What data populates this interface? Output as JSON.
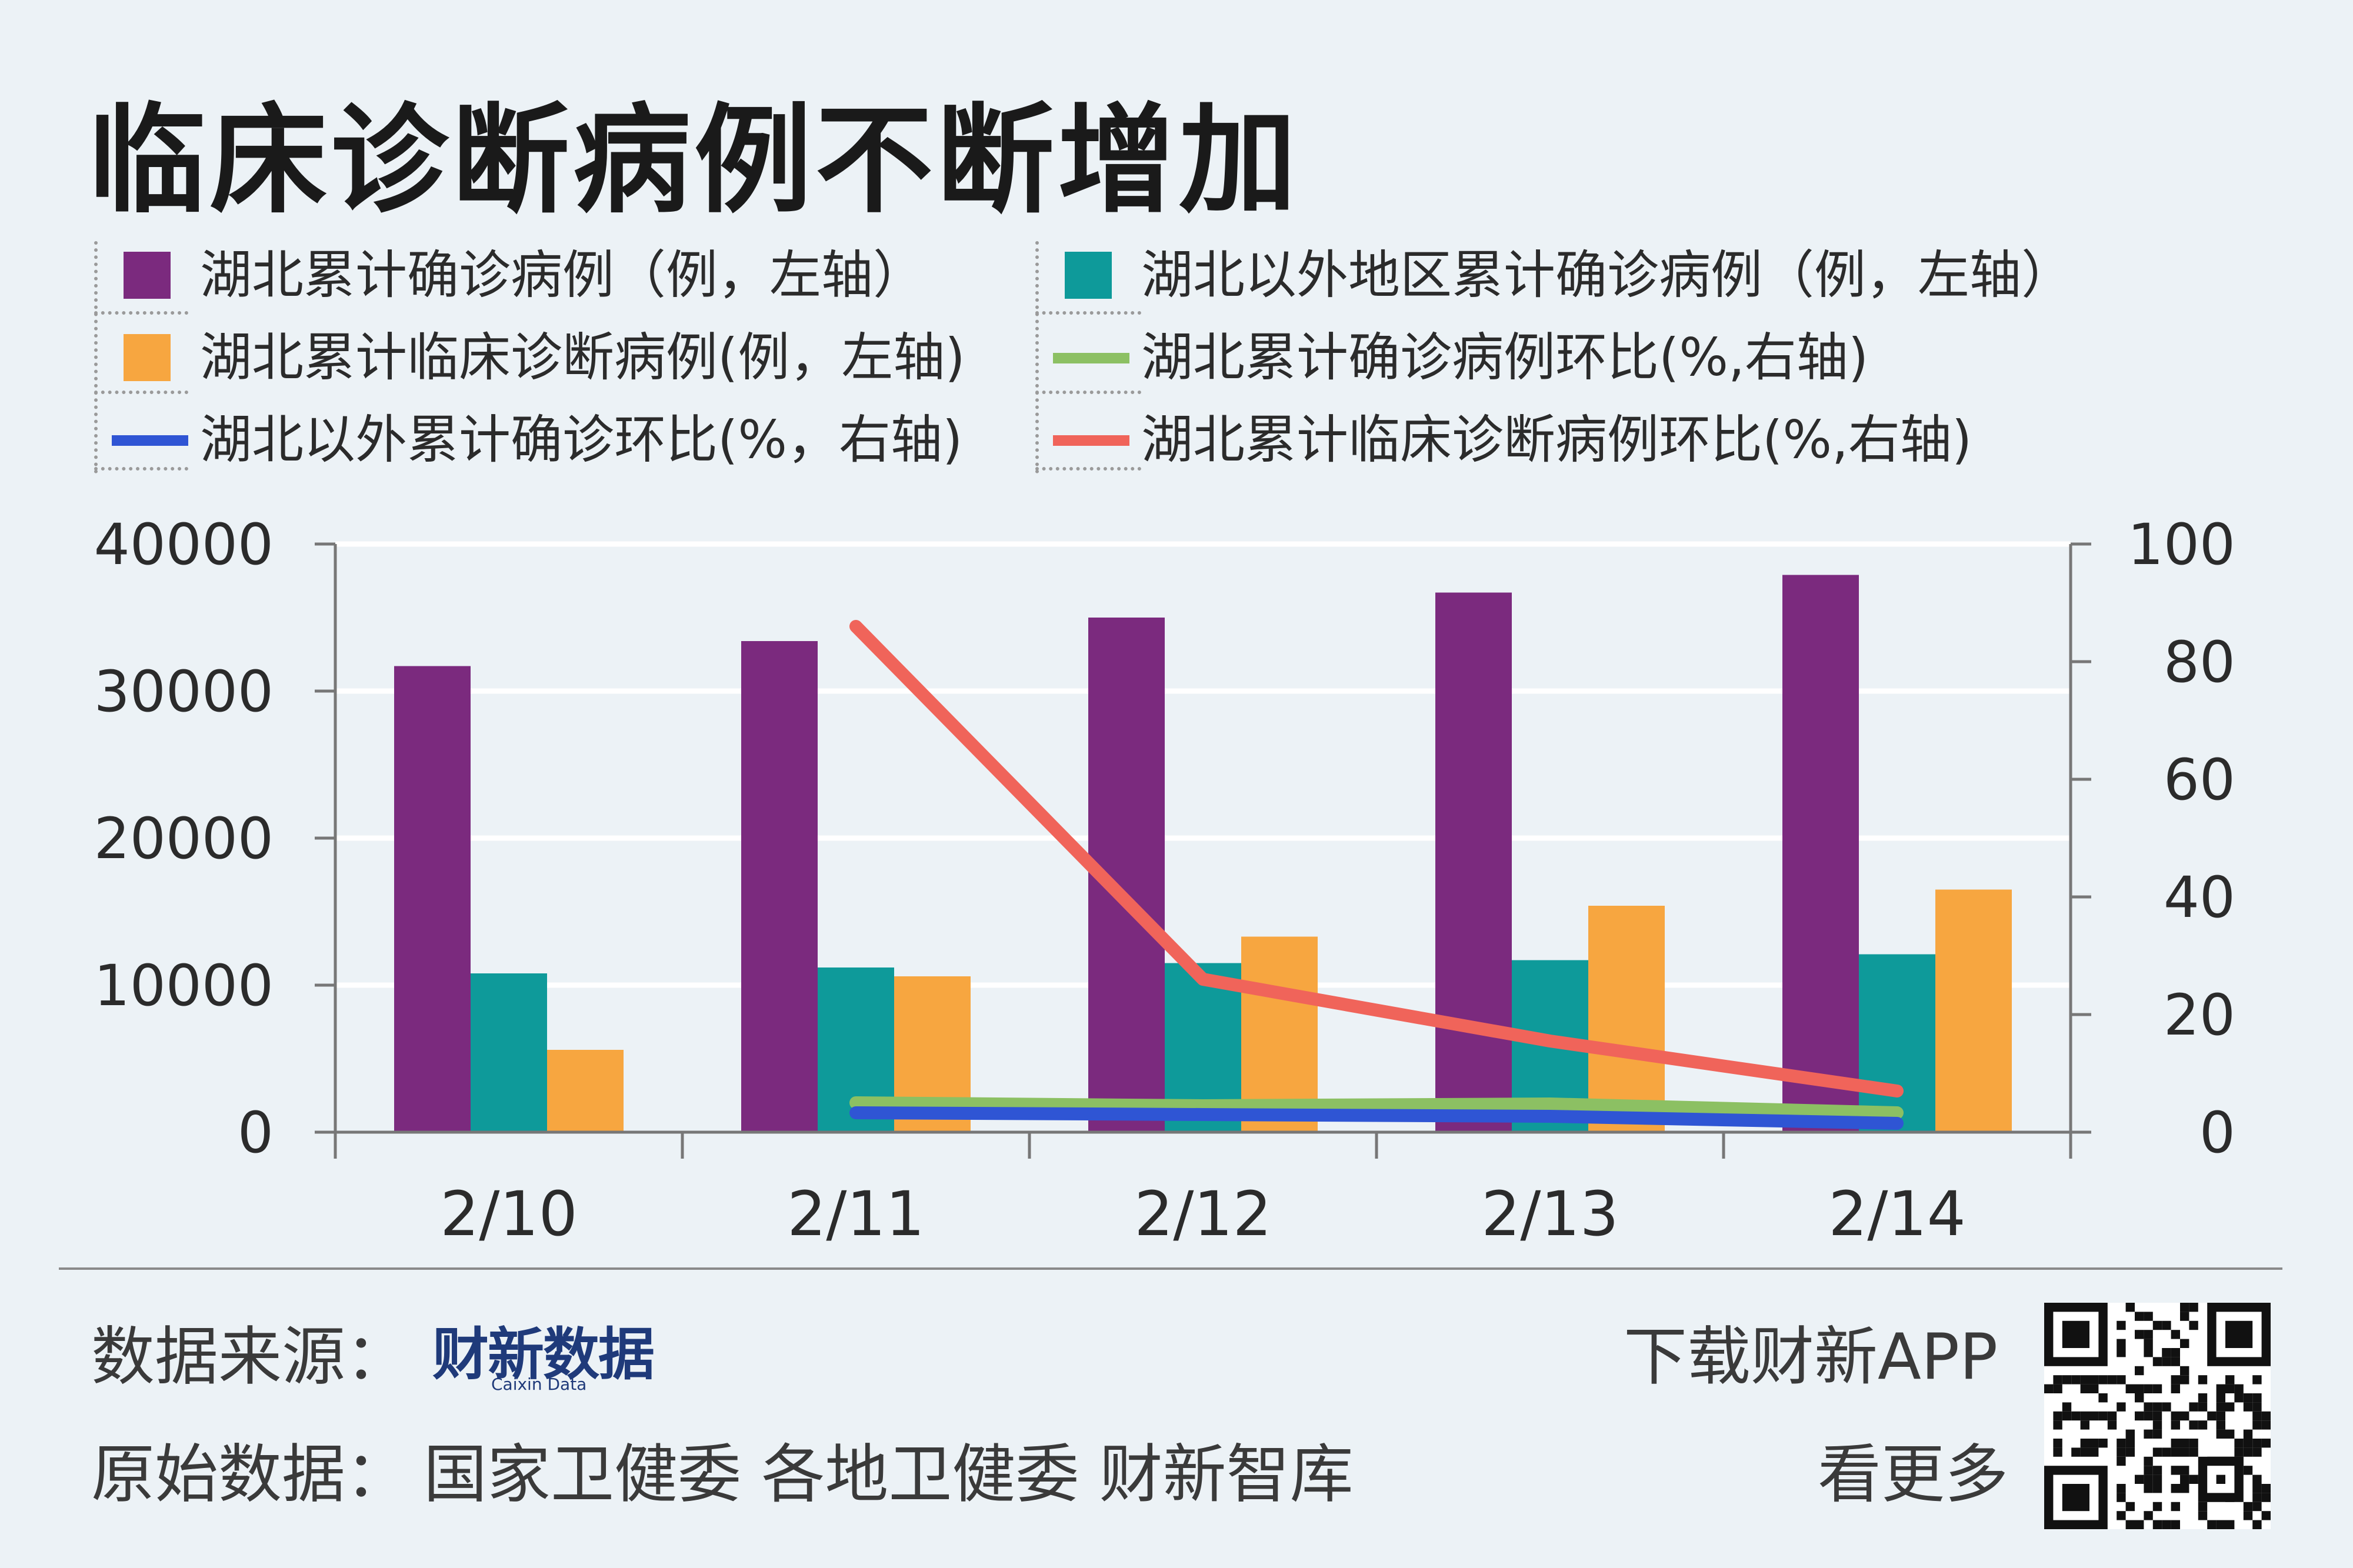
{
  "title": "临床诊断病例不断增加",
  "legend": [
    {
      "key": "hubei_confirmed",
      "label": "湖北累计确诊病例（例，左轴）",
      "color": "#7b2a7e",
      "shape": "square"
    },
    {
      "key": "outside_confirmed",
      "label": "湖北以外地区累计确诊病例（例，左轴）",
      "color": "#0e9a9a",
      "shape": "square"
    },
    {
      "key": "hubei_clinical",
      "label": "湖北累计临床诊断病例(例，左轴)",
      "color": "#f7a640",
      "shape": "square"
    },
    {
      "key": "hubei_confirmed_ratio",
      "label": "湖北累计确诊病例环比(%,右轴)",
      "color": "#8cc063",
      "shape": "line"
    },
    {
      "key": "outside_ratio",
      "label": "湖北以外累计确诊环比(%，右轴)",
      "color": "#2f55d4",
      "shape": "line"
    },
    {
      "key": "hubei_clinical_ratio",
      "label": "湖北累计临床诊断病例环比(%,右轴)",
      "color": "#f0645a",
      "shape": "line"
    }
  ],
  "chart_data": {
    "type": "bar",
    "categories": [
      "2/10",
      "2/11",
      "2/12",
      "2/13",
      "2/14"
    ],
    "series": [
      {
        "name": "湖北累计确诊病例（例，左轴）",
        "axis": "left",
        "type": "bar",
        "color": "#7b2a7e",
        "values": [
          31700,
          33400,
          35000,
          36700,
          37900
        ]
      },
      {
        "name": "湖北以外地区累计确诊病例（例，左轴）",
        "axis": "left",
        "type": "bar",
        "color": "#0e9a9a",
        "values": [
          10800,
          11200,
          11500,
          11700,
          12100
        ]
      },
      {
        "name": "湖北累计临床诊断病例(例，左轴)",
        "axis": "left",
        "type": "bar",
        "color": "#f7a640",
        "values": [
          5600,
          10600,
          13300,
          15400,
          16500
        ]
      },
      {
        "name": "湖北累计确诊病例环比(%,右轴)",
        "axis": "right",
        "type": "line",
        "color": "#8cc063",
        "values": [
          null,
          5,
          4.5,
          4.8,
          3.3
        ]
      },
      {
        "name": "湖北以外累计确诊环比(%，右轴)",
        "axis": "right",
        "type": "line",
        "color": "#2f55d4",
        "values": [
          null,
          3.3,
          3,
          2.7,
          1.5
        ]
      },
      {
        "name": "湖北累计临床诊断病例环比(%,右轴)",
        "axis": "right",
        "type": "line",
        "color": "#f0645a",
        "values": [
          null,
          86,
          26,
          15.5,
          7
        ]
      }
    ],
    "y_left": {
      "ylim": [
        0,
        40000
      ],
      "ticks": [
        "0",
        "10000",
        "20000",
        "30000",
        "40000"
      ]
    },
    "y_right": {
      "ylim": [
        0,
        100
      ],
      "ticks": [
        "0",
        "20",
        "40",
        "60",
        "80",
        "100"
      ]
    },
    "grid": true,
    "legend_position": "top"
  },
  "footer": {
    "source_label": "数据来源：",
    "source_logo_main": "财新数据",
    "source_logo_sub": "Caixin Data",
    "original_label": "原始数据：",
    "original_sources": "国家卫健委  各地卫健委  财新智库",
    "app_line1": "下载财新APP",
    "app_line2": "看更多"
  }
}
